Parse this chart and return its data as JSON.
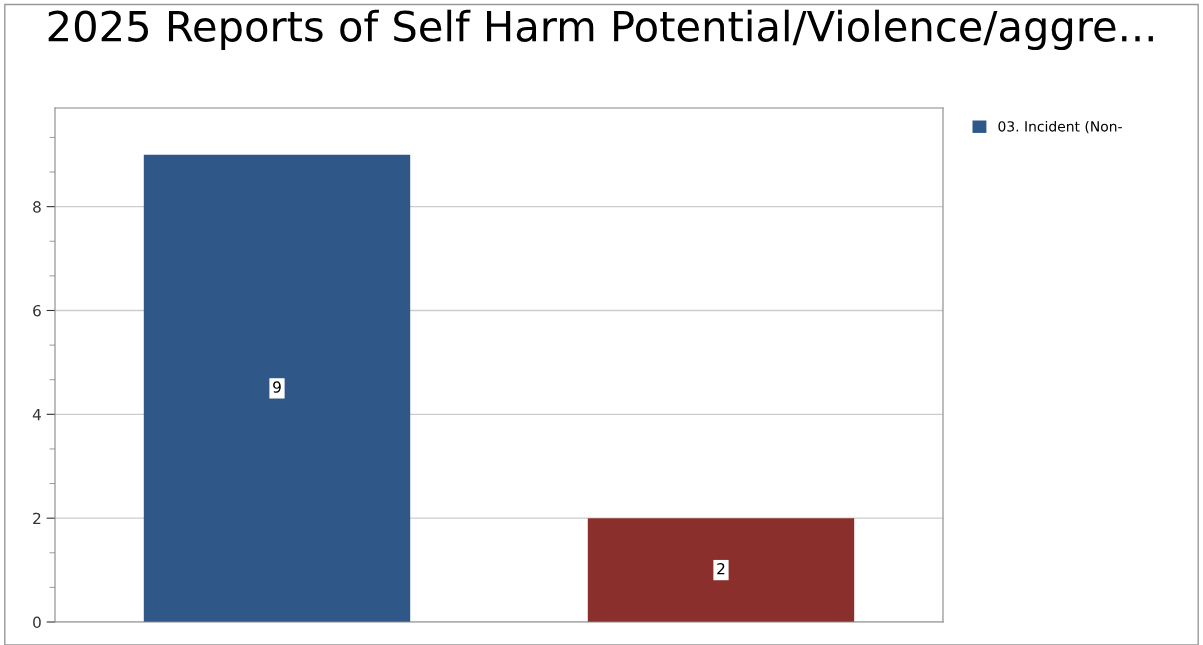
{
  "chart_data": {
    "type": "bar",
    "title": "2025 Reports of Self Harm Potential/Violence/aggre...",
    "categories": [
      null,
      null
    ],
    "series": [
      {
        "name": "03. Incident (Non-",
        "color": "#2f5889",
        "colors": [
          "#2f5889",
          "#8b2f2c"
        ],
        "values": [
          9,
          2
        ]
      }
    ],
    "ylim": [
      0,
      9.9
    ],
    "yticks": [
      0,
      2,
      4,
      6,
      8
    ],
    "grid": "y",
    "legend": "top right",
    "data_labels": true
  }
}
